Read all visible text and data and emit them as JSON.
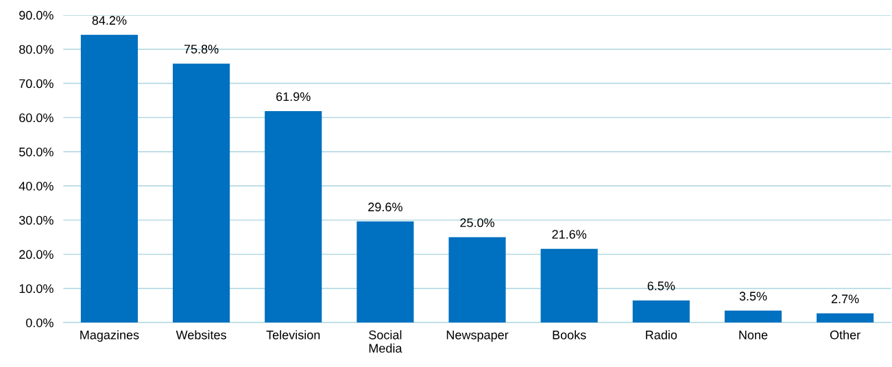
{
  "chart_data": {
    "type": "bar",
    "categories": [
      "Magazines",
      "Websites",
      "Television",
      "Social\nMedia",
      "Newspaper",
      "Books",
      "Radio",
      "None",
      "Other"
    ],
    "values": [
      84.2,
      75.8,
      61.9,
      29.6,
      25.0,
      21.6,
      6.5,
      3.5,
      2.7
    ],
    "value_labels": [
      "84.2%",
      "75.8%",
      "61.9%",
      "29.6%",
      "25.0%",
      "21.6%",
      "6.5%",
      "3.5%",
      "2.7%"
    ],
    "color": "#0070c0",
    "ylim": [
      0,
      90
    ],
    "yticks": [
      {
        "value": 0,
        "label": "0.0%"
      },
      {
        "value": 10,
        "label": "10.0%"
      },
      {
        "value": 20,
        "label": "20.0%"
      },
      {
        "value": 30,
        "label": "30.0%"
      },
      {
        "value": 40,
        "label": "40.0%"
      },
      {
        "value": 50,
        "label": "50.0%"
      },
      {
        "value": 60,
        "label": "60.0%"
      },
      {
        "value": 70,
        "label": "70.0%"
      },
      {
        "value": 80,
        "label": "80.0%"
      },
      {
        "value": 90,
        "label": "90.0%"
      }
    ],
    "grid": "y",
    "legend": false
  }
}
